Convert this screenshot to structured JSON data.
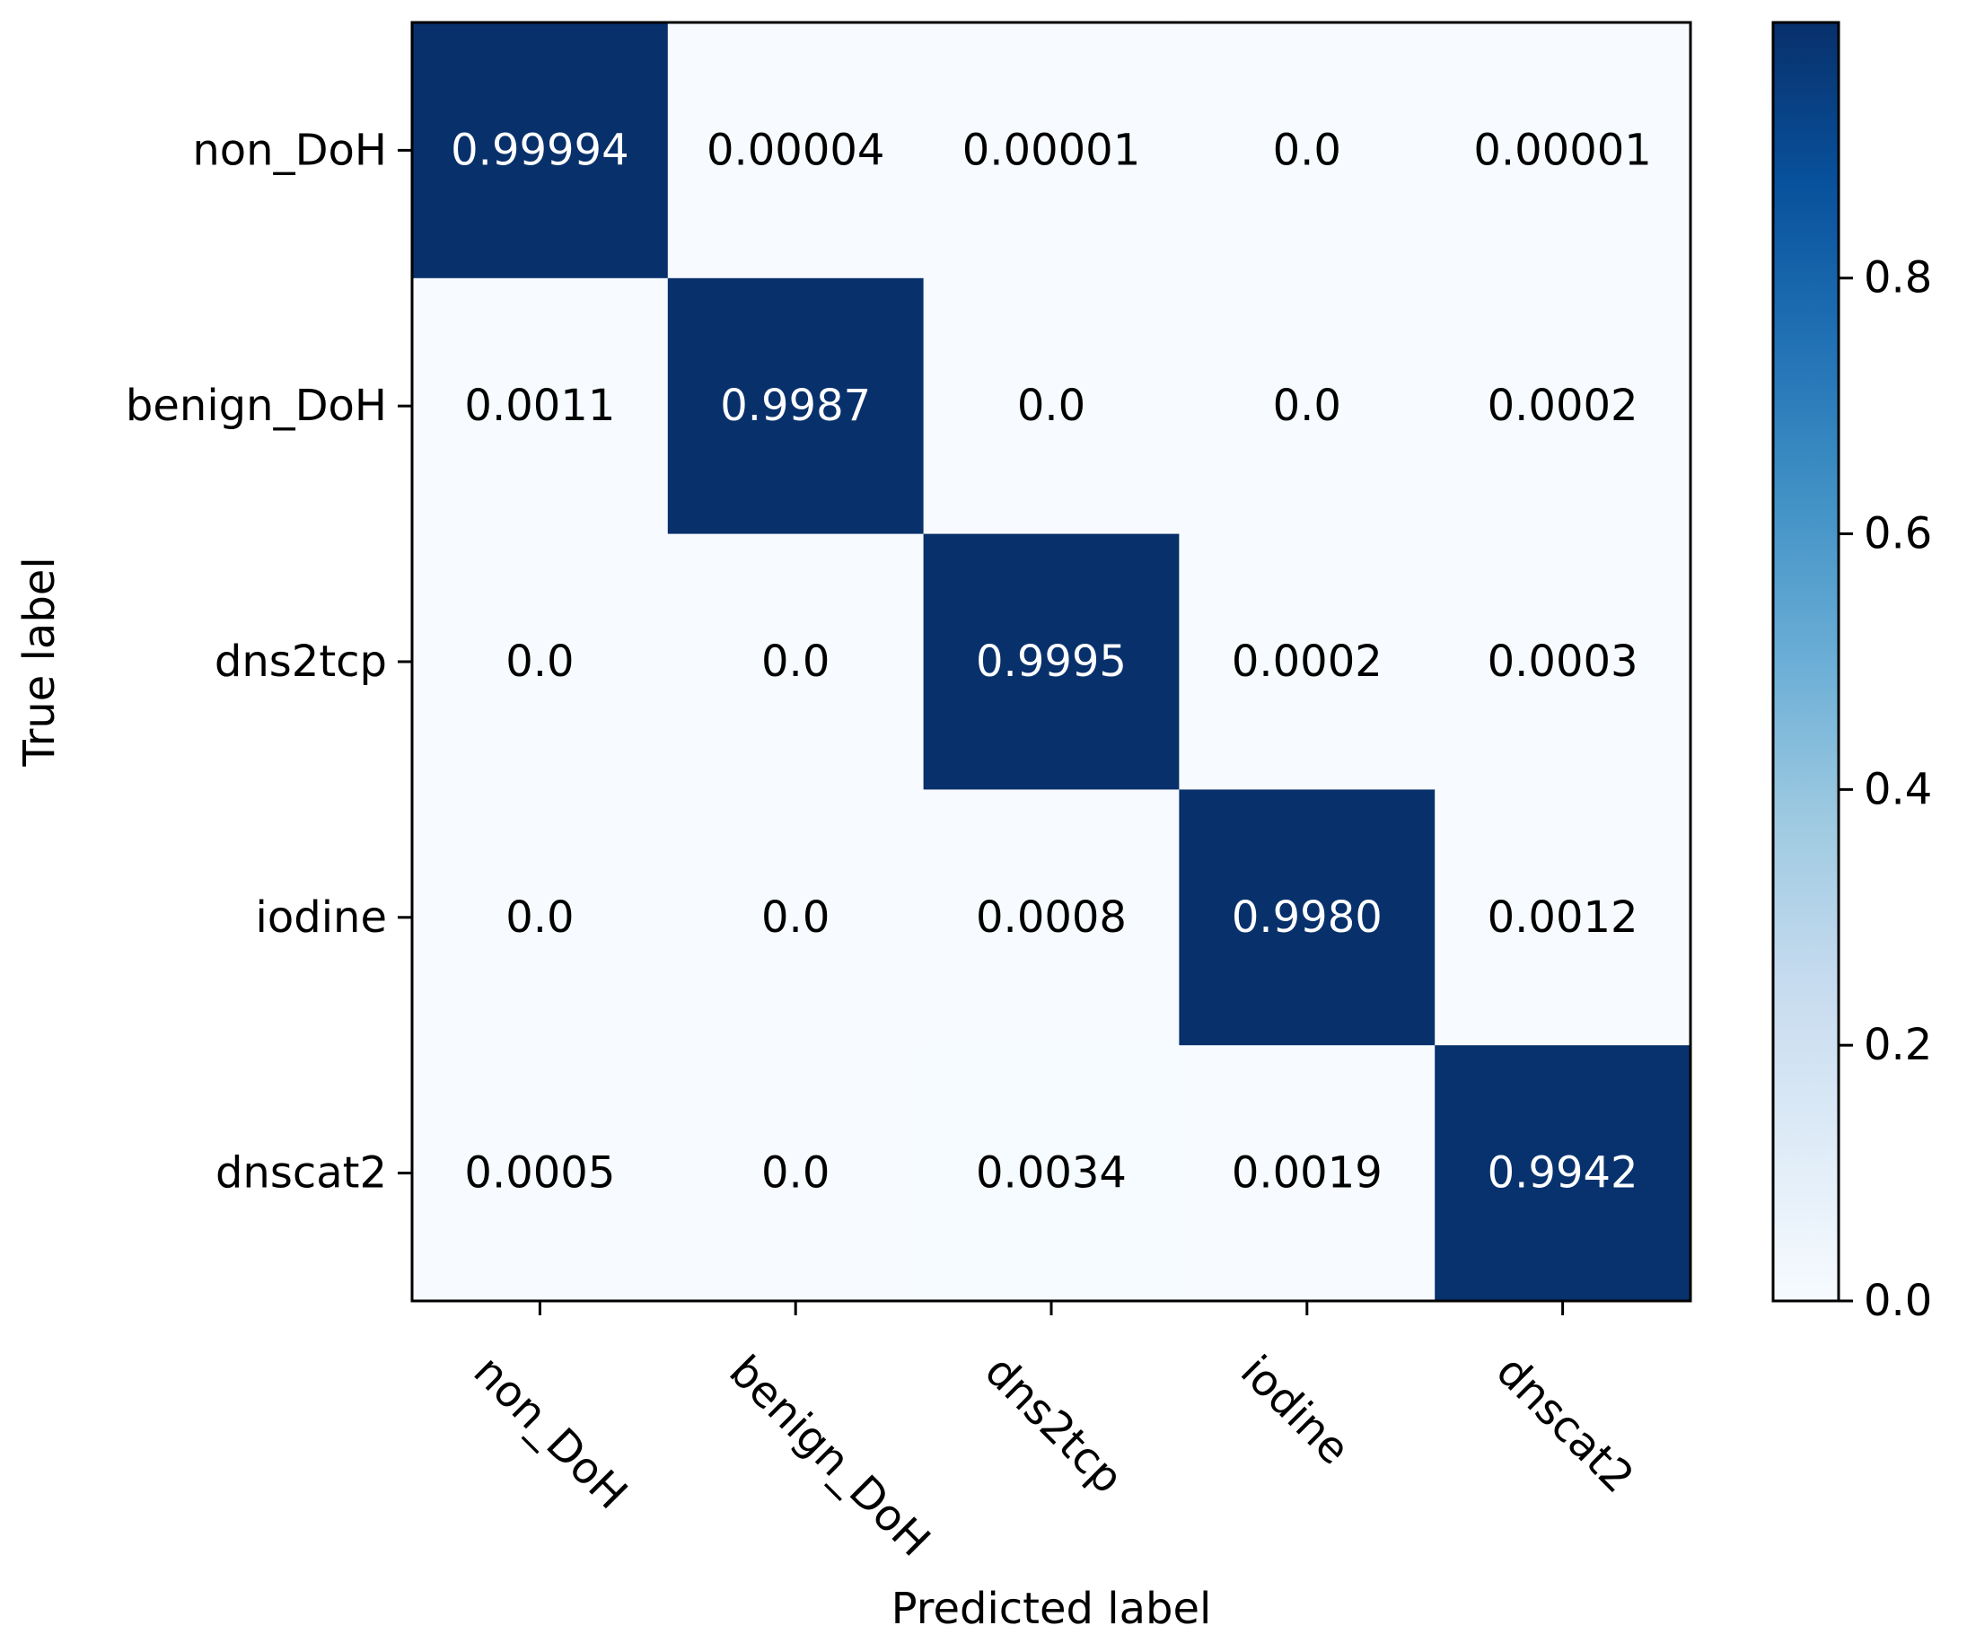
{
  "chart_data": {
    "type": "heatmap",
    "title": "",
    "xlabel": "Predicted label",
    "ylabel": "True label",
    "x_categories": [
      "non_DoH",
      "benign_DoH",
      "dns2tcp",
      "iodine",
      "dnscat2"
    ],
    "y_categories": [
      "non_DoH",
      "benign_DoH",
      "dns2tcp",
      "iodine",
      "dnscat2"
    ],
    "values": [
      [
        0.99994,
        4e-05,
        1e-05,
        0.0,
        1e-05
      ],
      [
        0.0011,
        0.9987,
        0.0,
        0.0,
        0.0002
      ],
      [
        0.0,
        0.0,
        0.9995,
        0.0002,
        0.0003
      ],
      [
        0.0,
        0.0,
        0.0008,
        0.998,
        0.0012
      ],
      [
        0.0005,
        0.0,
        0.0034,
        0.0019,
        0.9942
      ]
    ],
    "cell_labels": [
      [
        "0.99994",
        "0.00004",
        "0.00001",
        "0.0",
        "0.00001"
      ],
      [
        "0.0011",
        "0.9987",
        "0.0",
        "0.0",
        "0.0002"
      ],
      [
        "0.0",
        "0.0",
        "0.9995",
        "0.0002",
        "0.0003"
      ],
      [
        "0.0",
        "0.0",
        "0.0008",
        "0.9980",
        "0.0012"
      ],
      [
        "0.0005",
        "0.0",
        "0.0034",
        "0.0019",
        "0.9942"
      ]
    ],
    "colormap": "Blues",
    "color_range": [
      0,
      0.99994
    ],
    "colorbar_ticks": [
      0.0,
      0.2,
      0.4,
      0.6,
      0.8
    ],
    "colorbar_tick_labels": [
      "0.0",
      "0.2",
      "0.4",
      "0.6",
      "0.8"
    ],
    "colors": {
      "low": "#f7fbff",
      "high": "#08306b",
      "text_dark": "#000000",
      "text_light": "#ffffff"
    }
  }
}
